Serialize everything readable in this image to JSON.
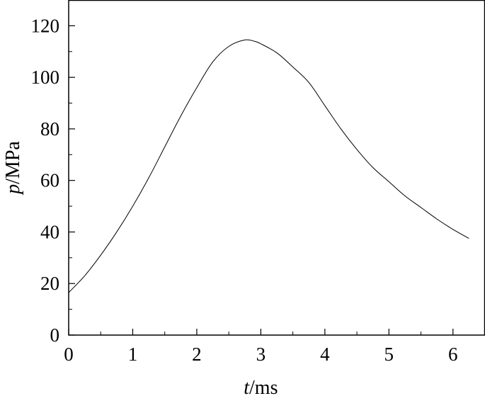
{
  "chart_data": {
    "type": "line",
    "title": "",
    "xlabel": {
      "var": "t",
      "unit": "/ms"
    },
    "ylabel": {
      "var": "p",
      "unit": "/MPa"
    },
    "xlim": [
      0,
      6.5
    ],
    "ylim": [
      0,
      130
    ],
    "xticks": [
      0,
      1,
      2,
      3,
      4,
      5,
      6
    ],
    "yticks": [
      0,
      20,
      40,
      60,
      80,
      100,
      120
    ],
    "grid": false,
    "legend": "none",
    "line_color": "#000000",
    "series": [
      {
        "x": [
          0,
          0.25,
          0.5,
          0.75,
          1.0,
          1.25,
          1.5,
          1.75,
          2.0,
          2.25,
          2.5,
          2.75,
          2.9,
          3.0,
          3.25,
          3.5,
          3.75,
          4.0,
          4.25,
          4.5,
          4.75,
          5.0,
          5.25,
          5.5,
          5.75,
          6.0,
          6.25
        ],
        "y": [
          16.5,
          23,
          31,
          40,
          50,
          61,
          73,
          85,
          96,
          106,
          112,
          114.5,
          114,
          113,
          109.5,
          104,
          98,
          89,
          80,
          72,
          65,
          59.5,
          54,
          49.5,
          45,
          41,
          37.5
        ]
      }
    ]
  }
}
